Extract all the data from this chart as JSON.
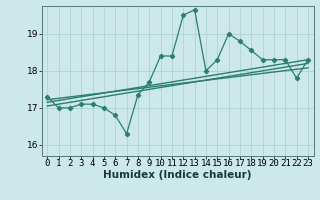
{
  "title": "",
  "xlabel": "Humidex (Indice chaleur)",
  "xlim": [
    -0.5,
    23.5
  ],
  "ylim": [
    15.7,
    19.75
  ],
  "yticks": [
    16,
    17,
    18,
    19
  ],
  "xticks": [
    0,
    1,
    2,
    3,
    4,
    5,
    6,
    7,
    8,
    9,
    10,
    11,
    12,
    13,
    14,
    15,
    16,
    17,
    18,
    19,
    20,
    21,
    22,
    23
  ],
  "main_x": [
    0,
    1,
    2,
    3,
    4,
    5,
    6,
    7,
    8,
    9,
    10,
    11,
    12,
    13,
    14,
    15,
    16,
    17,
    18,
    19,
    20,
    21,
    22,
    23
  ],
  "main_y": [
    17.3,
    17.0,
    17.0,
    17.1,
    17.1,
    17.0,
    16.8,
    16.3,
    17.35,
    17.7,
    18.4,
    18.4,
    19.5,
    19.65,
    18.0,
    18.3,
    19.0,
    18.8,
    18.55,
    18.3,
    18.3,
    18.3,
    17.8,
    18.3
  ],
  "reg_lines": [
    {
      "x0": 0,
      "y0": 17.05,
      "x1": 23,
      "y1": 18.2
    },
    {
      "x0": 0,
      "y0": 17.15,
      "x1": 23,
      "y1": 18.3
    },
    {
      "x0": 0,
      "y0": 17.22,
      "x1": 23,
      "y1": 18.08
    }
  ],
  "line_color": "#2a7f6f",
  "bg_color": "#cde8ea",
  "grid_color": "#a8cfcf",
  "tick_fontsize": 6.5,
  "label_fontsize": 7.5
}
